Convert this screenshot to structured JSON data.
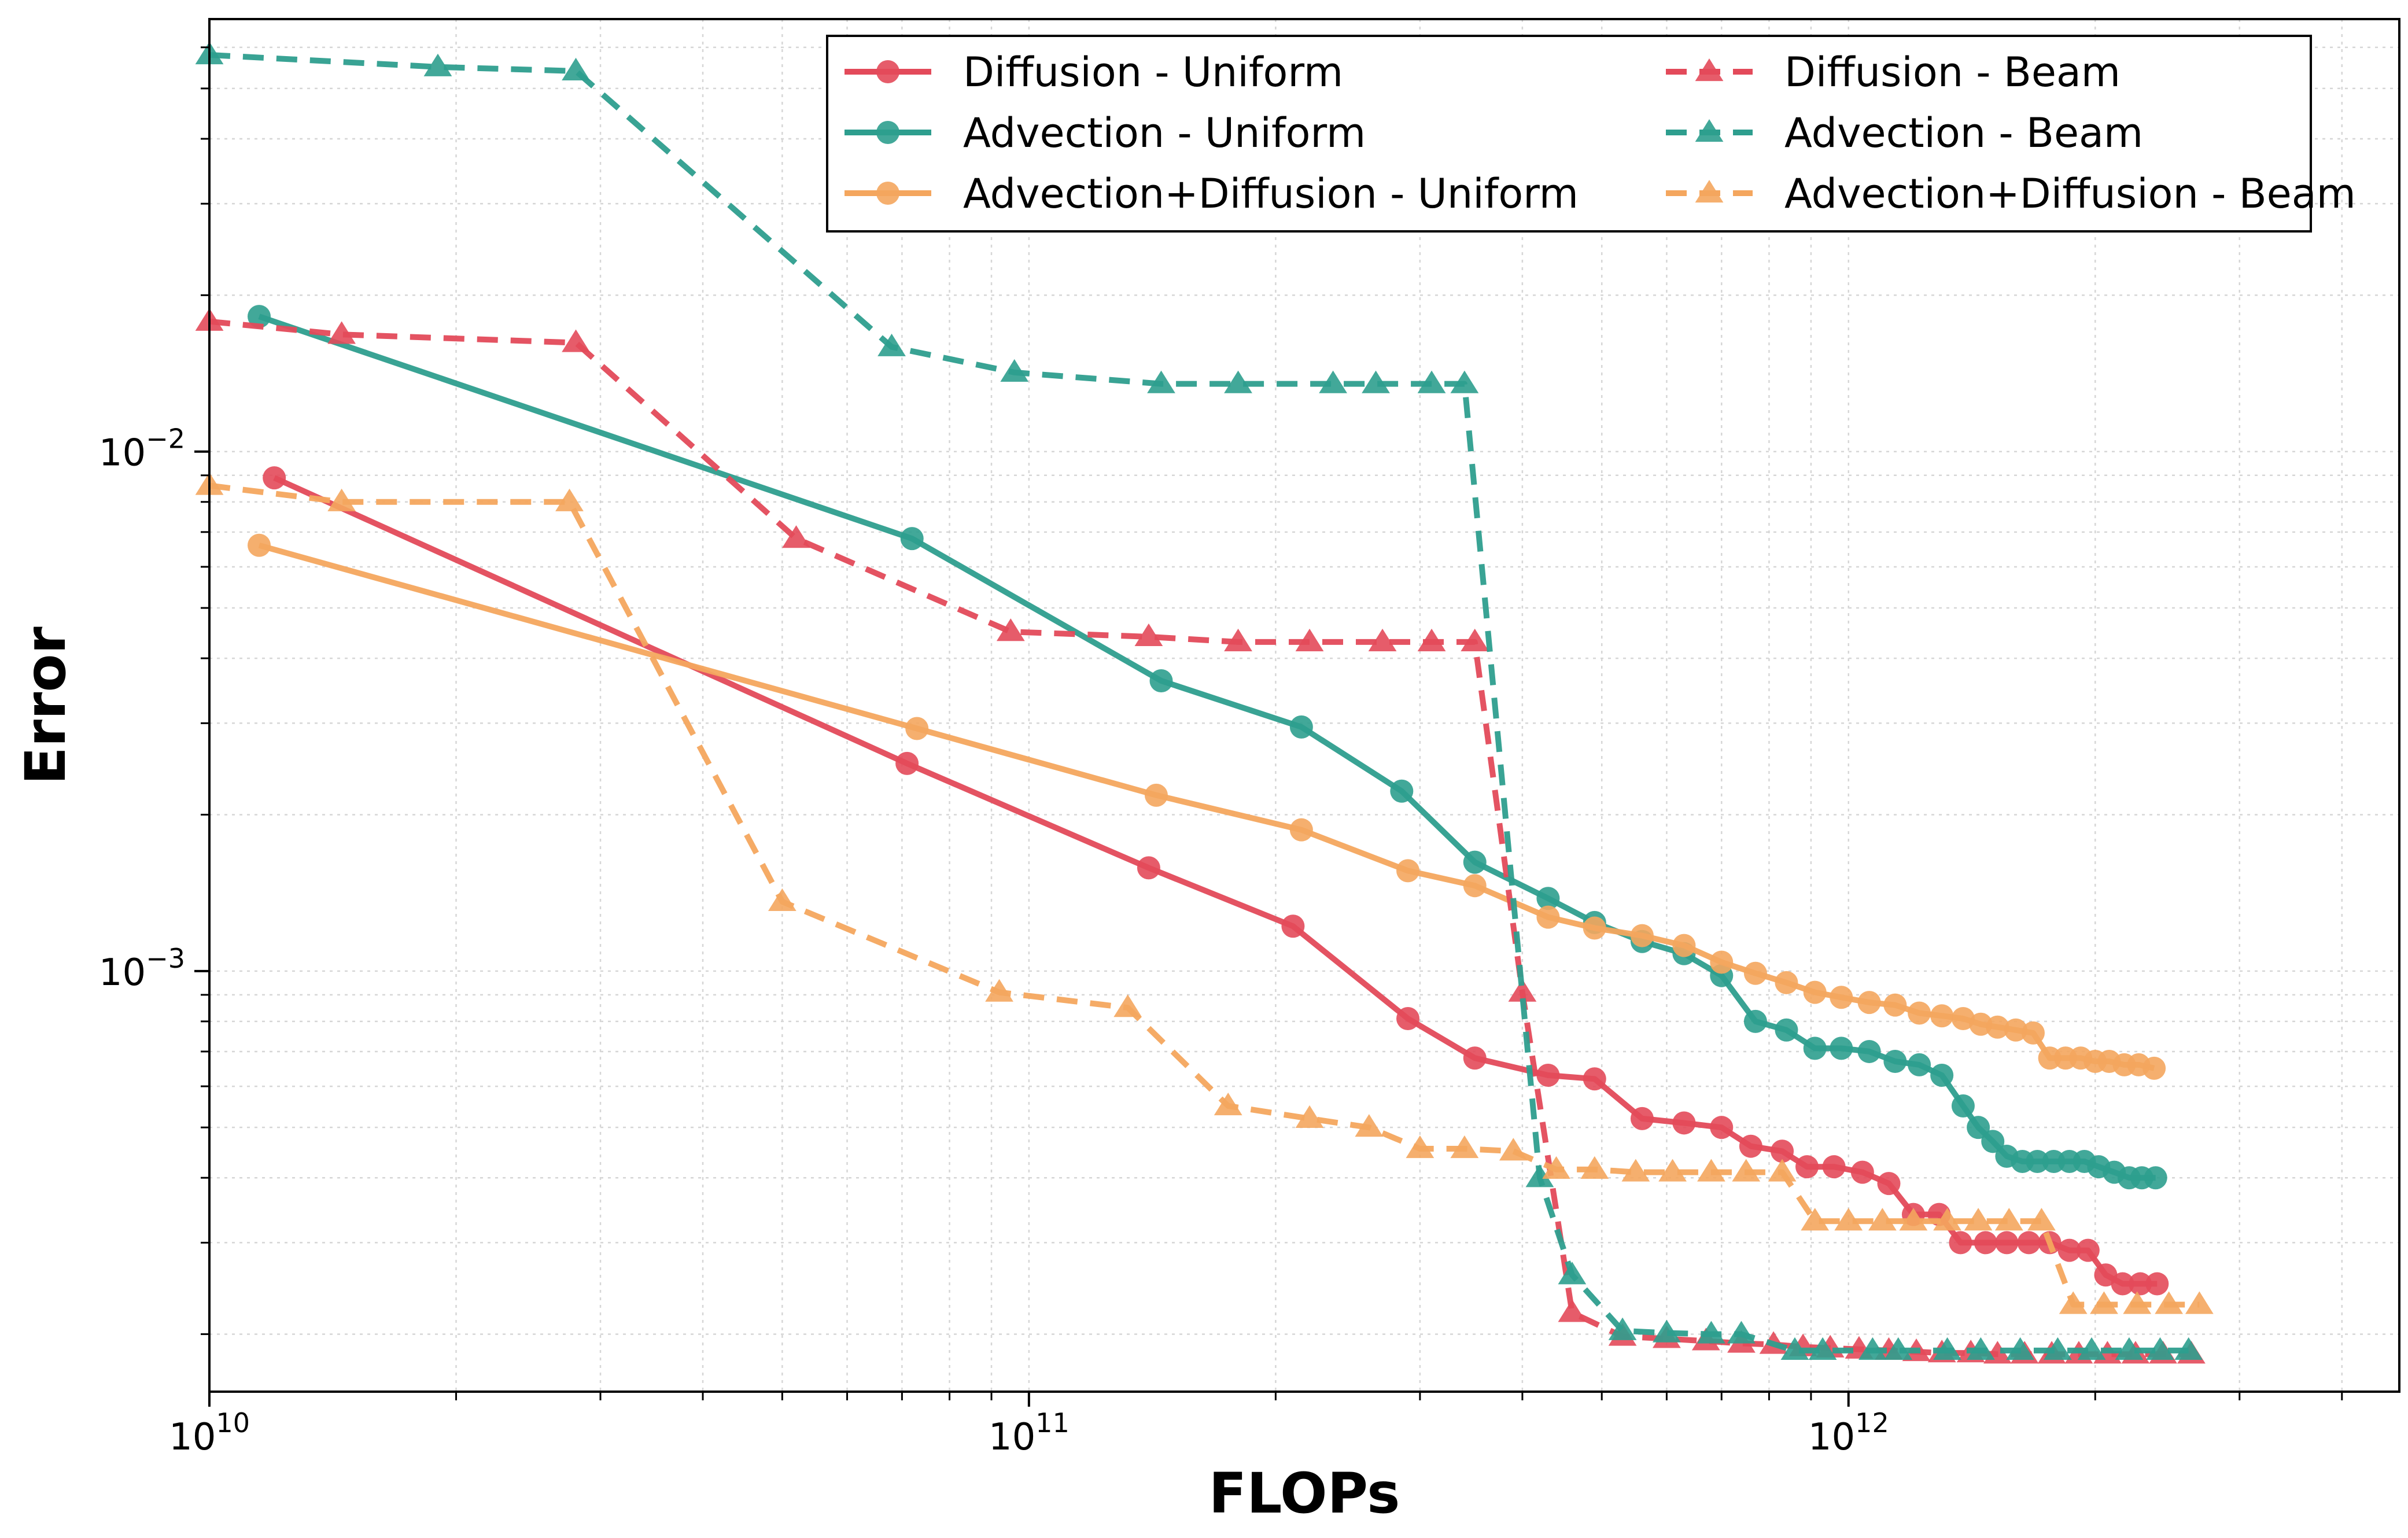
{
  "chart_data": {
    "type": "line",
    "title": "",
    "xlabel": "FLOPs",
    "ylabel": "Error",
    "xscale": "log",
    "yscale": "log",
    "xlim": [
      10000000000.0,
      4700000000000.0
    ],
    "ylim": [
      0.000155,
      0.068
    ],
    "grid": true,
    "legend_position": "top-right",
    "x_tick_labels": [
      {
        "value": 10000000000.0,
        "base": "10",
        "exp": "10"
      },
      {
        "value": 100000000000.0,
        "base": "10",
        "exp": "11"
      },
      {
        "value": 1000000000000.0,
        "base": "10",
        "exp": "12"
      }
    ],
    "y_tick_labels": [
      {
        "value": 0.01,
        "base": "10",
        "exp": "−2"
      },
      {
        "value": 0.001,
        "base": "10",
        "exp": "−3"
      }
    ],
    "series": [
      {
        "name": "Diffusion - Uniform",
        "color": "#e34a5a",
        "linestyle": "solid",
        "marker": "circle",
        "points": [
          [
            12000000000.0,
            0.0089
          ],
          [
            71000000000.0,
            0.00251
          ],
          [
            140000000000.0,
            0.00158
          ],
          [
            210000000000.0,
            0.00122
          ],
          [
            290000000000.0,
            0.00081
          ],
          [
            350000000000.0,
            0.00068
          ],
          [
            430000000000.0,
            0.00063
          ],
          [
            490000000000.0,
            0.00062
          ],
          [
            560000000000.0,
            0.00052
          ],
          [
            630000000000.0,
            0.00051
          ],
          [
            700000000000.0,
            0.0005
          ],
          [
            760000000000.0,
            0.00046
          ],
          [
            830000000000.0,
            0.00045
          ],
          [
            890000000000.0,
            0.00042
          ],
          [
            960000000000.0,
            0.00042
          ],
          [
            1040000000000.0,
            0.00041
          ],
          [
            1120000000000.0,
            0.00039
          ],
          [
            1200000000000.0,
            0.00034
          ],
          [
            1290000000000.0,
            0.00034
          ],
          [
            1370000000000.0,
            0.0003
          ],
          [
            1470000000000.0,
            0.0003
          ],
          [
            1560000000000.0,
            0.0003
          ],
          [
            1660000000000.0,
            0.0003
          ],
          [
            1760000000000.0,
            0.0003
          ],
          [
            1860000000000.0,
            0.00029
          ],
          [
            1960000000000.0,
            0.00029
          ],
          [
            2060000000000.0,
            0.00026
          ],
          [
            2160000000000.0,
            0.00025
          ],
          [
            2270000000000.0,
            0.00025
          ],
          [
            2380000000000.0,
            0.00025
          ]
        ]
      },
      {
        "name": "Advection - Uniform",
        "color": "#2e9e8e",
        "linestyle": "solid",
        "marker": "circle",
        "points": [
          [
            11500000000.0,
            0.0182
          ],
          [
            72000000000.0,
            0.0068
          ],
          [
            145000000000.0,
            0.00362
          ],
          [
            215000000000.0,
            0.00295
          ],
          [
            285000000000.0,
            0.00222
          ],
          [
            350000000000.0,
            0.00162
          ],
          [
            430000000000.0,
            0.00138
          ],
          [
            490000000000.0,
            0.00124
          ],
          [
            560000000000.0,
            0.00114
          ],
          [
            630000000000.0,
            0.00108
          ],
          [
            700000000000.0,
            0.00098
          ],
          [
            770000000000.0,
            0.0008
          ],
          [
            840000000000.0,
            0.00077
          ],
          [
            910000000000.0,
            0.00071
          ],
          [
            980000000000.0,
            0.00071
          ],
          [
            1060000000000.0,
            0.0007
          ],
          [
            1140000000000.0,
            0.00067
          ],
          [
            1220000000000.0,
            0.00066
          ],
          [
            1300000000000.0,
            0.00063
          ],
          [
            1380000000000.0,
            0.00055
          ],
          [
            1440000000000.0,
            0.0005
          ],
          [
            1500000000000.0,
            0.00047
          ],
          [
            1560000000000.0,
            0.00044
          ],
          [
            1630000000000.0,
            0.00043
          ],
          [
            1700000000000.0,
            0.00043
          ],
          [
            1780000000000.0,
            0.00043
          ],
          [
            1860000000000.0,
            0.00043
          ],
          [
            1940000000000.0,
            0.00043
          ],
          [
            2020000000000.0,
            0.00042
          ],
          [
            2110000000000.0,
            0.00041
          ],
          [
            2200000000000.0,
            0.0004
          ],
          [
            2280000000000.0,
            0.0004
          ],
          [
            2370000000000.0,
            0.0004
          ]
        ]
      },
      {
        "name": "Advection+Diffusion - Uniform",
        "color": "#f4a65e",
        "linestyle": "solid",
        "marker": "circle",
        "points": [
          [
            11500000000.0,
            0.0066
          ],
          [
            73000000000.0,
            0.00293
          ],
          [
            143000000000.0,
            0.00218
          ],
          [
            215000000000.0,
            0.00187
          ],
          [
            290000000000.0,
            0.00156
          ],
          [
            350000000000.0,
            0.00146
          ],
          [
            430000000000.0,
            0.00127
          ],
          [
            490000000000.0,
            0.00121
          ],
          [
            560000000000.0,
            0.00117
          ],
          [
            630000000000.0,
            0.00112
          ],
          [
            700000000000.0,
            0.00104
          ],
          [
            770000000000.0,
            0.00099
          ],
          [
            840000000000.0,
            0.00095
          ],
          [
            910000000000.0,
            0.00091
          ],
          [
            980000000000.0,
            0.00089
          ],
          [
            1060000000000.0,
            0.00087
          ],
          [
            1140000000000.0,
            0.00086
          ],
          [
            1220000000000.0,
            0.00083
          ],
          [
            1300000000000.0,
            0.00082
          ],
          [
            1380000000000.0,
            0.00081
          ],
          [
            1450000000000.0,
            0.00079
          ],
          [
            1520000000000.0,
            0.00078
          ],
          [
            1600000000000.0,
            0.00077
          ],
          [
            1680000000000.0,
            0.00076
          ],
          [
            1760000000000.0,
            0.00068
          ],
          [
            1840000000000.0,
            0.00068
          ],
          [
            1920000000000.0,
            0.00068
          ],
          [
            2000000000000.0,
            0.00067
          ],
          [
            2080000000000.0,
            0.00067
          ],
          [
            2170000000000.0,
            0.00066
          ],
          [
            2260000000000.0,
            0.00066
          ],
          [
            2360000000000.0,
            0.00065
          ]
        ]
      },
      {
        "name": "Diffusion - Beam",
        "color": "#e34a5a",
        "linestyle": "dashed",
        "marker": "triangle",
        "points": [
          [
            10000000000.0,
            0.0178
          ],
          [
            14500000000.0,
            0.0168
          ],
          [
            28000000000.0,
            0.0162
          ],
          [
            52000000000.0,
            0.0068
          ],
          [
            95000000000.0,
            0.0045
          ],
          [
            140000000000.0,
            0.0044
          ],
          [
            180000000000.0,
            0.0043
          ],
          [
            220000000000.0,
            0.0043
          ],
          [
            270000000000.0,
            0.0043
          ],
          [
            310000000000.0,
            0.0043
          ],
          [
            350000000000.0,
            0.0043
          ],
          [
            400000000000.0,
            0.00091
          ],
          [
            460000000000.0,
            0.00022
          ],
          [
            530000000000.0,
            0.000198
          ],
          [
            600000000000.0,
            0.000196
          ],
          [
            670000000000.0,
            0.000194
          ],
          [
            740000000000.0,
            0.000192
          ],
          [
            810000000000.0,
            0.000191
          ],
          [
            880000000000.0,
            0.000189
          ],
          [
            950000000000.0,
            0.000188
          ],
          [
            1030000000000.0,
            0.000187
          ],
          [
            1120000000000.0,
            0.000186
          ],
          [
            1210000000000.0,
            0.000185
          ],
          [
            1300000000000.0,
            0.000184
          ],
          [
            1410000000000.0,
            0.000184
          ],
          [
            1520000000000.0,
            0.000183
          ],
          [
            1640000000000.0,
            0.000183
          ],
          [
            1770000000000.0,
            0.000183
          ],
          [
            1910000000000.0,
            0.000183
          ],
          [
            2070000000000.0,
            0.000183
          ],
          [
            2240000000000.0,
            0.000183
          ],
          [
            2420000000000.0,
            0.000183
          ],
          [
            2620000000000.0,
            0.000183
          ]
        ]
      },
      {
        "name": "Advection - Beam",
        "color": "#2e9e8e",
        "linestyle": "dashed",
        "marker": "triangle",
        "points": [
          [
            10000000000.0,
            0.058
          ],
          [
            19000000000.0,
            0.055
          ],
          [
            28000000000.0,
            0.054
          ],
          [
            68000000000.0,
            0.0159
          ],
          [
            96000000000.0,
            0.0142
          ],
          [
            145000000000.0,
            0.0135
          ],
          [
            180000000000.0,
            0.0135
          ],
          [
            235000000000.0,
            0.0135
          ],
          [
            265000000000.0,
            0.0135
          ],
          [
            310000000000.0,
            0.0135
          ],
          [
            340000000000.0,
            0.0135
          ],
          [
            420000000000.0,
            0.0004
          ],
          [
            460000000000.0,
            0.00026
          ],
          [
            530000000000.0,
            0.000203
          ],
          [
            600000000000.0,
            0.000201
          ],
          [
            680000000000.0,
            0.0002
          ],
          [
            740000000000.0,
            0.0002
          ],
          [
            860000000000.0,
            0.000186
          ],
          [
            930000000000.0,
            0.000186
          ],
          [
            1070000000000.0,
            0.000186
          ],
          [
            1150000000000.0,
            0.000186
          ],
          [
            1320000000000.0,
            0.000186
          ],
          [
            1450000000000.0,
            0.000186
          ],
          [
            1620000000000.0,
            0.000186
          ],
          [
            1800000000000.0,
            0.000186
          ],
          [
            1980000000000.0,
            0.000186
          ],
          [
            2200000000000.0,
            0.000186
          ],
          [
            2400000000000.0,
            0.000186
          ],
          [
            2600000000000.0,
            0.000186
          ]
        ]
      },
      {
        "name": "Advection+Diffusion - Beam",
        "color": "#f4a65e",
        "linestyle": "dashed",
        "marker": "triangle",
        "points": [
          [
            10000000000.0,
            0.0086
          ],
          [
            14500000000.0,
            0.008
          ],
          [
            27500000000.0,
            0.008
          ],
          [
            50000000000.0,
            0.00136
          ],
          [
            92000000000.0,
            0.00091
          ],
          [
            132000000000.0,
            0.00085
          ],
          [
            175000000000.0,
            0.00055
          ],
          [
            220000000000.0,
            0.00052
          ],
          [
            260000000000.0,
            0.0005
          ],
          [
            300000000000.0,
            0.000455
          ],
          [
            340000000000.0,
            0.000455
          ],
          [
            390000000000.0,
            0.00045
          ],
          [
            440000000000.0,
            0.000415
          ],
          [
            490000000000.0,
            0.000415
          ],
          [
            550000000000.0,
            0.00041
          ],
          [
            610000000000.0,
            0.00041
          ],
          [
            680000000000.0,
            0.00041
          ],
          [
            750000000000.0,
            0.00041
          ],
          [
            830000000000.0,
            0.00041
          ],
          [
            910000000000.0,
            0.00033
          ],
          [
            1000000000000.0,
            0.00033
          ],
          [
            1100000000000.0,
            0.00033
          ],
          [
            1200000000000.0,
            0.00033
          ],
          [
            1320000000000.0,
            0.00033
          ],
          [
            1440000000000.0,
            0.00033
          ],
          [
            1570000000000.0,
            0.00033
          ],
          [
            1720000000000.0,
            0.00033
          ],
          [
            1880000000000.0,
            0.000228
          ],
          [
            2050000000000.0,
            0.000228
          ],
          [
            2250000000000.0,
            0.000228
          ],
          [
            2460000000000.0,
            0.000228
          ],
          [
            2680000000000.0,
            0.000228
          ]
        ]
      }
    ]
  }
}
